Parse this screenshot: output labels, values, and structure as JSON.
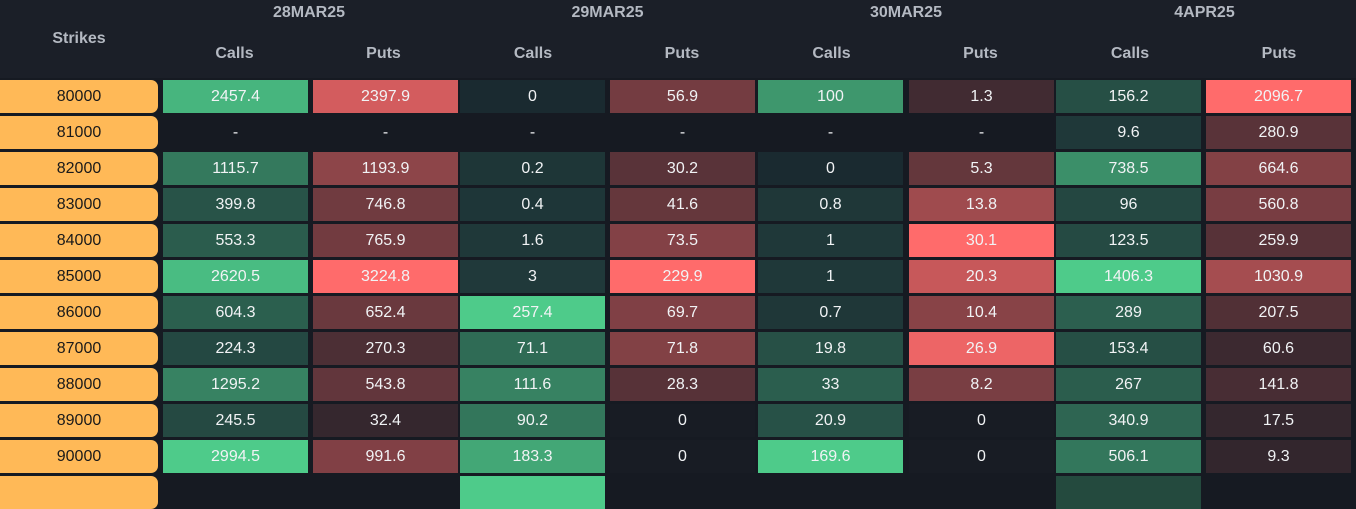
{
  "header": {
    "strikes_label": "Strikes",
    "calls_label": "Calls",
    "puts_label": "Puts"
  },
  "expiries": [
    "28MAR25",
    "29MAR25",
    "30MAR25",
    "4APR25"
  ],
  "colors": {
    "strike_bg": "#ffb957",
    "call_max": "#4ecb8a",
    "put_max": "#ff6b6b",
    "cell_base": "#1a1d25"
  },
  "rows": [
    {
      "strike": "80000",
      "values": [
        "2457.4",
        "2397.9",
        "0",
        "56.9",
        "100",
        "1.3",
        "156.2",
        "2096.7"
      ]
    },
    {
      "strike": "81000",
      "values": [
        "-",
        "-",
        "-",
        "-",
        "-",
        "-",
        "9.6",
        "280.9"
      ]
    },
    {
      "strike": "82000",
      "values": [
        "1115.7",
        "1193.9",
        "0.2",
        "30.2",
        "0",
        "5.3",
        "738.5",
        "664.6"
      ]
    },
    {
      "strike": "83000",
      "values": [
        "399.8",
        "746.8",
        "0.4",
        "41.6",
        "0.8",
        "13.8",
        "96",
        "560.8"
      ]
    },
    {
      "strike": "84000",
      "values": [
        "553.3",
        "765.9",
        "1.6",
        "73.5",
        "1",
        "30.1",
        "123.5",
        "259.9"
      ]
    },
    {
      "strike": "85000",
      "values": [
        "2620.5",
        "3224.8",
        "3",
        "229.9",
        "1",
        "20.3",
        "1406.3",
        "1030.9"
      ]
    },
    {
      "strike": "86000",
      "values": [
        "604.3",
        "652.4",
        "257.4",
        "69.7",
        "0.7",
        "10.4",
        "289",
        "207.5"
      ]
    },
    {
      "strike": "87000",
      "values": [
        "224.3",
        "270.3",
        "71.1",
        "71.8",
        "19.8",
        "26.9",
        "153.4",
        "60.6"
      ]
    },
    {
      "strike": "88000",
      "values": [
        "1295.2",
        "543.8",
        "111.6",
        "28.3",
        "33",
        "8.2",
        "267",
        "141.8"
      ]
    },
    {
      "strike": "89000",
      "values": [
        "245.5",
        "32.4",
        "90.2",
        "0",
        "20.9",
        "0",
        "340.9",
        "17.5"
      ]
    },
    {
      "strike": "90000",
      "values": [
        "2994.5",
        "991.6",
        "183.3",
        "0",
        "169.6",
        "0",
        "506.1",
        "9.3"
      ]
    }
  ]
}
